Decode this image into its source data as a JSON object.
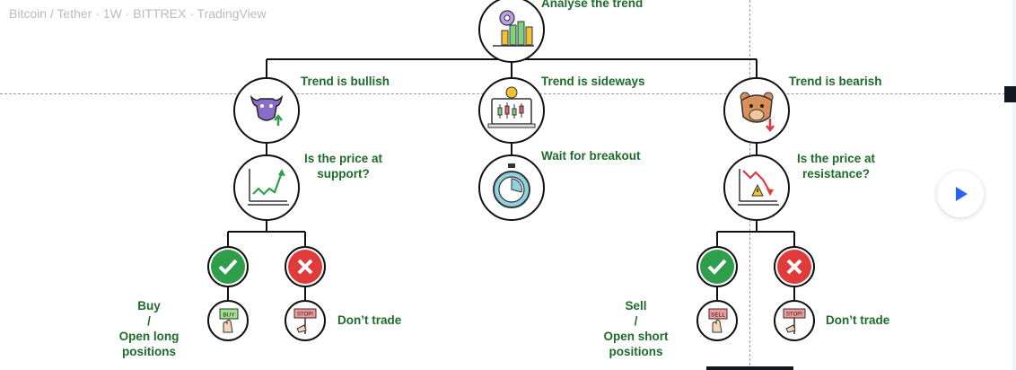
{
  "chart_header": {
    "title": "Bitcoin / Tether · 1W · BITTREX · TradingView"
  },
  "diagram": {
    "root": "Analyse the trend",
    "bullish": "Trend is bullish",
    "sideways": "Trend is sideways",
    "bearish": "Trend is bearish",
    "support_q_line1": "Is the price at",
    "support_q_line2": "support?",
    "resistance_q_line1": "Is the price at",
    "resistance_q_line2": "resistance?",
    "wait": "Wait for breakout",
    "buy_line1": "Buy",
    "buy_line2": "/",
    "buy_line3": "Open long positions",
    "sell_line1": "Sell",
    "sell_line2": "/",
    "sell_line3": "Open short positions",
    "dont_trade_left": "Don’t trade",
    "dont_trade_right": "Don’t trade",
    "buy_sign": "BUY",
    "sell_sign": "SELL",
    "stop_sign_left": "STOP!",
    "stop_sign_right": "STOP!"
  },
  "colors": {
    "label_green": "#1e6b2a",
    "check_green": "#2e9e4a",
    "cross_red": "#e03b3b",
    "play_blue": "#2962ff"
  },
  "icons": {
    "root": "chart-target-icon",
    "bullish": "bull-icon",
    "sideways": "candlestick-monitor-icon",
    "bearish": "bear-icon",
    "support": "rising-chart-icon",
    "wait": "stopwatch-icon",
    "resistance": "falling-chart-warning-icon",
    "yes": "check-icon",
    "no": "cross-icon",
    "buy": "buy-sign-hand-icon",
    "sell": "sell-sign-hand-icon",
    "stop": "stop-sign-hand-icon",
    "play": "play-icon"
  }
}
